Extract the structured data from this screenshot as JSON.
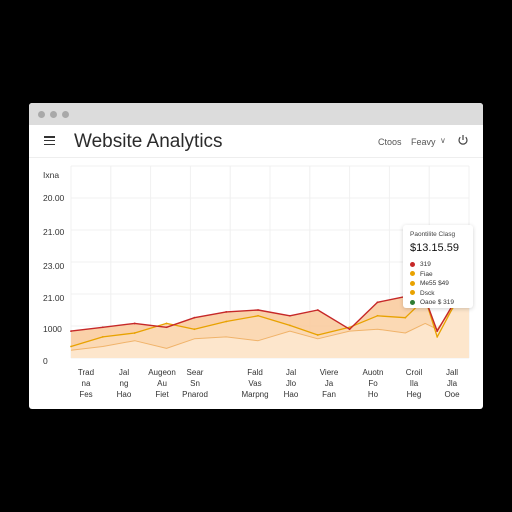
{
  "app": {
    "title": "Website Analytics"
  },
  "toolbar": {
    "item1": "Ctoos",
    "item2": "Feavy",
    "chevron": "∨"
  },
  "colors": {
    "series1": "#c62828",
    "series2": "#e8a200",
    "area": "#f9c99a",
    "accent_green": "#2e7d32"
  },
  "icons": [
    "menu-icon",
    "power-icon"
  ],
  "chart_data": {
    "type": "area",
    "y_tick_labels": [
      "Ixna",
      "20.00",
      "21.00",
      "23.00",
      "21.00",
      "1000",
      "0"
    ],
    "x_tick_labels": [
      {
        "top": "Trad",
        "mid": "na",
        "bot": "Fes"
      },
      {
        "top": "Jal",
        "mid": "ng",
        "bot": "Hao"
      },
      {
        "top": "Augeon",
        "mid": "Au",
        "bot": "Fiet"
      },
      {
        "top": "Sear",
        "mid": "Sn",
        "bot": "Pnarod"
      },
      {
        "top": "Fald",
        "mid": "Vas",
        "bot": "Marpng"
      },
      {
        "top": "Jal",
        "mid": "Jlo",
        "bot": "Hao"
      },
      {
        "top": "Viere",
        "mid": "Ja",
        "bot": "Fan"
      },
      {
        "top": "Auotn",
        "mid": "Fo",
        "bot": "Ho"
      },
      {
        "top": "Croil",
        "mid": "Ila",
        "bot": "Heg"
      },
      {
        "top": "Jall",
        "mid": "Jla",
        "bot": "Ooe"
      }
    ],
    "series": [
      {
        "values": [
          0.86,
          0.84,
          0.82,
          0.84,
          0.79,
          0.76,
          0.75,
          0.78,
          0.75,
          0.85,
          0.71,
          0.68,
          0.69,
          0.86,
          0.58
        ]
      },
      {
        "values": [
          0.94,
          0.89,
          0.87,
          0.82,
          0.85,
          0.81,
          0.78,
          0.83,
          0.88,
          0.84,
          0.78,
          0.79,
          0.69,
          0.89,
          0.58
        ]
      },
      {
        "values": [
          0.96,
          0.94,
          0.91,
          0.95,
          0.9,
          0.89,
          0.91,
          0.86,
          0.9,
          0.86,
          0.85,
          0.87,
          0.82,
          0.85,
          0.63
        ]
      }
    ],
    "x_positions": [
      0,
      0.08,
      0.16,
      0.24,
      0.31,
      0.39,
      0.47,
      0.55,
      0.62,
      0.7,
      0.77,
      0.84,
      0.89,
      0.92,
      1.0
    ],
    "ylim": [
      0,
      1
    ],
    "grid": true
  },
  "tooltip": {
    "title": "Paontilite Clasg",
    "value": "$13.15.59",
    "rows": [
      {
        "label": "319",
        "color": "#c62828"
      },
      {
        "label": "Fiae",
        "color": "#e8a200"
      },
      {
        "label": "Me55 $49",
        "color": "#e8a200"
      },
      {
        "label": "Dsck",
        "color": "#e8a200"
      },
      {
        "label": "Oaoe $ 319",
        "color": "#2e7d32"
      }
    ]
  }
}
